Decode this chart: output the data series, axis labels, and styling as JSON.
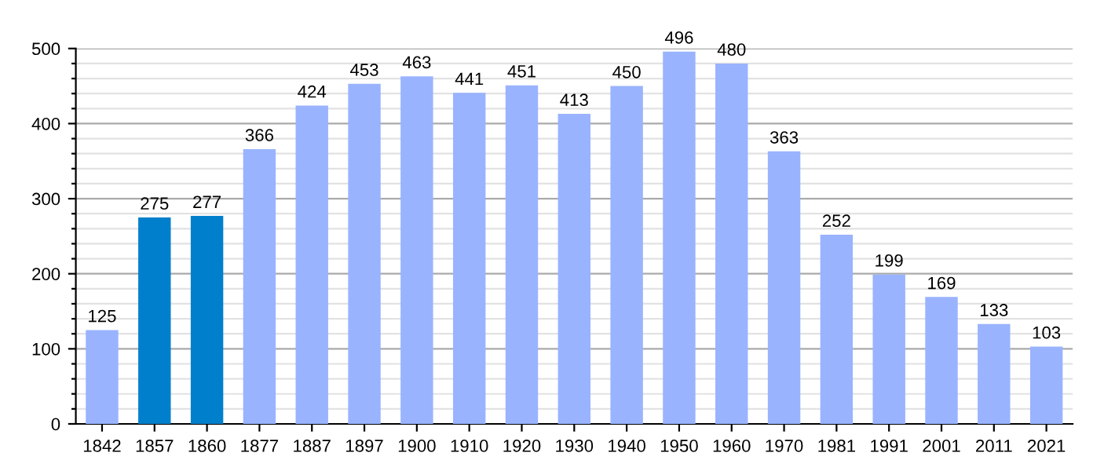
{
  "chart_data": {
    "type": "bar",
    "categories": [
      "1842",
      "1857",
      "1860",
      "1877",
      "1887",
      "1897",
      "1900",
      "1910",
      "1920",
      "1930",
      "1940",
      "1950",
      "1960",
      "1970",
      "1981",
      "1991",
      "2001",
      "2011",
      "2021"
    ],
    "values": [
      125,
      275,
      277,
      366,
      424,
      453,
      463,
      441,
      451,
      413,
      450,
      496,
      480,
      363,
      252,
      199,
      169,
      133,
      103
    ],
    "colors": [
      "#99b3ff",
      "#0080cc",
      "#0080cc",
      "#99b3ff",
      "#99b3ff",
      "#99b3ff",
      "#99b3ff",
      "#99b3ff",
      "#99b3ff",
      "#99b3ff",
      "#99b3ff",
      "#99b3ff",
      "#99b3ff",
      "#99b3ff",
      "#99b3ff",
      "#99b3ff",
      "#99b3ff",
      "#99b3ff",
      "#99b3ff"
    ],
    "ylim": [
      0,
      500
    ],
    "yticks": [
      0,
      {
        "value": 20,
        "label": null
      },
      {
        "value": 40,
        "label": null
      },
      {
        "value": 60,
        "label": null
      },
      {
        "value": 80,
        "label": null
      },
      100,
      {
        "value": 120,
        "label": null
      },
      {
        "value": 140,
        "label": null
      },
      {
        "value": 160,
        "label": null
      },
      {
        "value": 180,
        "label": null
      },
      200,
      {
        "value": 220,
        "label": null
      },
      {
        "value": 240,
        "label": null
      },
      {
        "value": 260,
        "label": null
      },
      {
        "value": 280,
        "label": null
      },
      300,
      {
        "value": 320,
        "label": null
      },
      {
        "value": 340,
        "label": null
      },
      {
        "value": 360,
        "label": null
      },
      {
        "value": 380,
        "label": null
      },
      400,
      {
        "value": 420,
        "label": null
      },
      {
        "value": 440,
        "label": null
      },
      {
        "value": 460,
        "label": null
      },
      {
        "value": 480,
        "label": null
      },
      500
    ],
    "grid": "y",
    "data_labels": true
  }
}
